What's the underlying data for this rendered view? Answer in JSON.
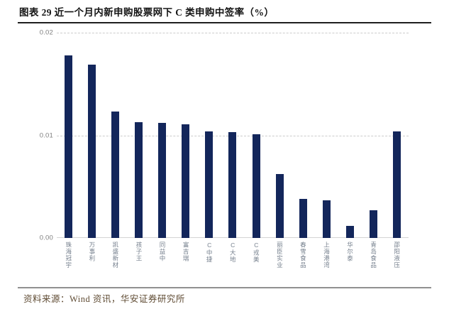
{
  "header": {
    "title": "图表  29 近一个月内新申购股票网下 C 类申购中签率（%）"
  },
  "footer": {
    "source": "资料来源：Wind 资讯，华安证券研究所"
  },
  "colors": {
    "bar": "#13265b",
    "gridline": "#cbcbcb",
    "axis_line": "#d4d4d4",
    "y_tick_text": "#7f7f7f",
    "x_tick_text": "#76808e",
    "title_text": "#141414",
    "source_text": "#5f4b33"
  },
  "chart_data": {
    "type": "bar",
    "title": "近一个月内新申购股票网下C类申购中签率（%）",
    "xlabel": "",
    "ylabel": "",
    "ylim": [
      0,
      0.02
    ],
    "yticks": [
      "0.02",
      "0.01",
      "0.00"
    ],
    "grid": "horizontal dashed at 0.01 and 0.02, solid axis at 0.00",
    "legend": "none",
    "bar_orientation": "vertical",
    "categories": [
      "珠海冠宇",
      "万事利",
      "凯盛新材",
      "孩子王",
      "同益中",
      "富吉瑞",
      "C中捷",
      "C大地",
      "C戎美",
      "丽臣实业",
      "春雪食品",
      "上海港湾",
      "华尔泰",
      "青岛食品",
      "邵阳液压"
    ],
    "values": [
      0.0178,
      0.0169,
      0.0123,
      0.0113,
      0.0112,
      0.0111,
      0.0104,
      0.0103,
      0.0101,
      0.0062,
      0.0038,
      0.0037,
      0.0012,
      0.0027,
      0.0104
    ]
  }
}
